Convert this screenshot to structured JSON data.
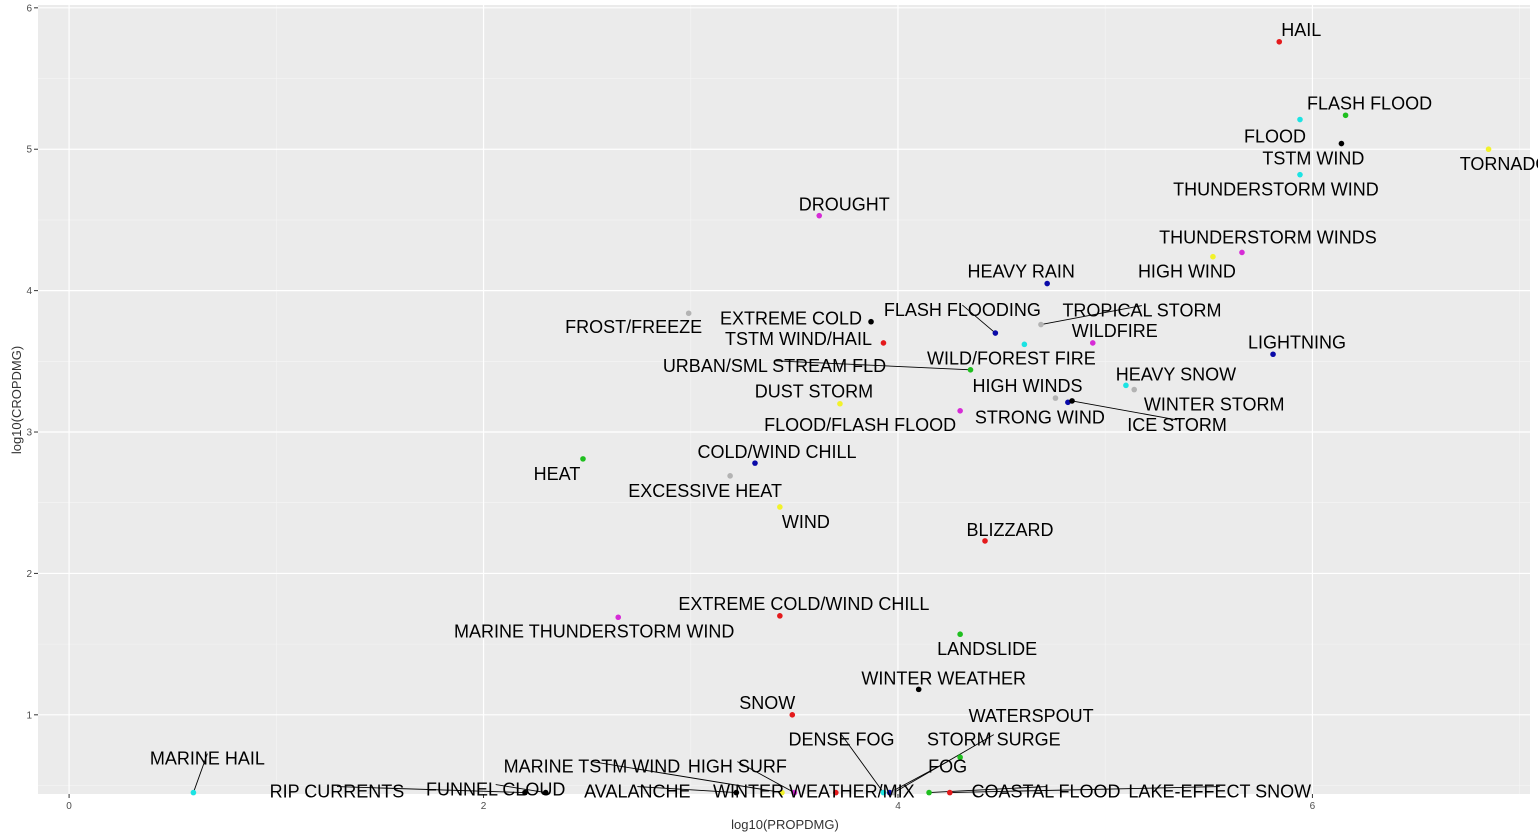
{
  "chart_data": {
    "type": "scatter",
    "xlabel": "log10(PROPDMG)",
    "ylabel": "log10(CROPDMG)",
    "xlim": [
      -0.15,
      7.05
    ],
    "ylim": [
      0.44,
      6.02
    ],
    "x_ticks": [
      0,
      2,
      4,
      6
    ],
    "y_ticks": [
      1,
      2,
      3,
      4,
      5,
      6
    ],
    "grid": true,
    "legend": "none",
    "points": [
      {
        "label": "HAIL",
        "x": 5.84,
        "y": 5.76,
        "color": "#e41a1c"
      },
      {
        "label": "FLASH FLOOD",
        "x": 6.16,
        "y": 5.24,
        "color": "#1fbf1f"
      },
      {
        "label": "FLOOD",
        "x": 5.94,
        "y": 5.21,
        "color": "#1be3e3"
      },
      {
        "label": "TSTM WIND",
        "x": 6.14,
        "y": 5.04,
        "color": "#000000"
      },
      {
        "label": "TORNADO",
        "x": 6.85,
        "y": 5.0,
        "color": "#f2f22a"
      },
      {
        "label": "THUNDERSTORM WIND",
        "x": 5.94,
        "y": 4.82,
        "color": "#1be3e3"
      },
      {
        "label": "DROUGHT",
        "x": 3.62,
        "y": 4.53,
        "color": "#d62bd6"
      },
      {
        "label": "THUNDERSTORM WINDS",
        "x": 5.66,
        "y": 4.27,
        "color": "#d62bd6"
      },
      {
        "label": "HIGH WIND",
        "x": 5.52,
        "y": 4.24,
        "color": "#f2f22a"
      },
      {
        "label": "HEAVY RAIN",
        "x": 4.72,
        "y": 4.05,
        "color": "#0a0aa8"
      },
      {
        "label": "FROST/FREEZE",
        "x": 2.99,
        "y": 3.84,
        "color": "#b3b3b3"
      },
      {
        "label": "EXTREME COLD",
        "x": 3.87,
        "y": 3.78,
        "color": "#000000"
      },
      {
        "label": "TROPICAL STORM",
        "x": 4.69,
        "y": 3.76,
        "color": "#b3b3b3"
      },
      {
        "label": "FLASH FLOODING",
        "x": 4.47,
        "y": 3.7,
        "color": "#0a0aa8"
      },
      {
        "label": "TSTM WIND/HAIL",
        "x": 3.93,
        "y": 3.63,
        "color": "#e41a1c"
      },
      {
        "label": "WILDFIRE",
        "x": 4.94,
        "y": 3.63,
        "color": "#d62bd6"
      },
      {
        "label": "LIGHTNING",
        "x": 5.81,
        "y": 3.55,
        "color": "#0a0aa8"
      },
      {
        "label": "WILD/FOREST FIRE",
        "x": 4.61,
        "y": 3.62,
        "color": "#1be3e3"
      },
      {
        "label": "URBAN/SML STREAM FLD",
        "x": 4.35,
        "y": 3.44,
        "color": "#1fbf1f"
      },
      {
        "label": "HEAVY SNOW",
        "x": 5.1,
        "y": 3.33,
        "color": "#1be3e3"
      },
      {
        "label": "WINTER STORM",
        "x": 5.14,
        "y": 3.3,
        "color": "#b3b3b3"
      },
      {
        "label": "HIGH WINDS",
        "x": 4.76,
        "y": 3.24,
        "color": "#b3b3b3"
      },
      {
        "label": "DUST STORM",
        "x": 3.72,
        "y": 3.2,
        "color": "#f2f22a"
      },
      {
        "label": "STRONG WIND",
        "x": 4.82,
        "y": 3.21,
        "color": "#0a0aa8"
      },
      {
        "label": "ICE STORM",
        "x": 4.84,
        "y": 3.22,
        "color": "#000000"
      },
      {
        "label": "FLOOD/FLASH FLOOD",
        "x": 4.3,
        "y": 3.15,
        "color": "#d62bd6"
      },
      {
        "label": "HEAT",
        "x": 2.48,
        "y": 2.81,
        "color": "#1fbf1f"
      },
      {
        "label": "COLD/WIND CHILL",
        "x": 3.31,
        "y": 2.78,
        "color": "#0a0aa8"
      },
      {
        "label": "EXCESSIVE HEAT",
        "x": 3.19,
        "y": 2.69,
        "color": "#b3b3b3"
      },
      {
        "label": "WIND",
        "x": 3.43,
        "y": 2.47,
        "color": "#f2f22a"
      },
      {
        "label": "BLIZZARD",
        "x": 4.42,
        "y": 2.23,
        "color": "#e41a1c"
      },
      {
        "label": "MARINE THUNDERSTORM WIND",
        "x": 2.65,
        "y": 1.69,
        "color": "#d62bd6"
      },
      {
        "label": "EXTREME COLD/WIND CHILL",
        "x": 3.43,
        "y": 1.7,
        "color": "#e41a1c"
      },
      {
        "label": "LANDSLIDE",
        "x": 4.3,
        "y": 1.57,
        "color": "#1fbf1f"
      },
      {
        "label": "WINTER WEATHER",
        "x": 4.1,
        "y": 1.18,
        "color": "#000000"
      },
      {
        "label": "SNOW",
        "x": 3.49,
        "y": 1.0,
        "color": "#e41a1c"
      },
      {
        "label": "WATERSPOUT",
        "x": 4.3,
        "y": 0.7,
        "color": "#1fbf1f"
      },
      {
        "label": "MARINE HAIL",
        "x": 0.6,
        "y": 0.45,
        "color": "#1be3e3"
      },
      {
        "label": "RIP CURRENTS",
        "x": 2.2,
        "y": 0.45,
        "color": "#000000"
      },
      {
        "label": "FUNNEL CLOUD",
        "x": 2.3,
        "y": 0.45,
        "color": "#000000"
      },
      {
        "label": "AVALANCHE",
        "x": 3.22,
        "y": 0.45,
        "color": "#000000"
      },
      {
        "label": "MARINE TSTM WIND",
        "x": 3.44,
        "y": 0.45,
        "color": "#f2f22a"
      },
      {
        "label": "HIGH SURF",
        "x": 3.5,
        "y": 0.45,
        "color": "#d62bd6"
      },
      {
        "label": "WINTER WEATHER/MIX",
        "x": 3.7,
        "y": 0.45,
        "color": "#e41a1c"
      },
      {
        "label": "DENSE FOG",
        "x": 3.93,
        "y": 0.45,
        "color": "#1be3e3"
      },
      {
        "label": "FOG",
        "x": 3.96,
        "y": 0.45,
        "color": "#0a0aa8"
      },
      {
        "label": "STORM SURGE",
        "x": 3.98,
        "y": 0.45,
        "color": "#b3b3b3"
      },
      {
        "label": "COASTAL FLOOD",
        "x": 4.15,
        "y": 0.45,
        "color": "#1fbf1f"
      },
      {
        "label": "LAKE-EFFECT SNOW",
        "x": 4.25,
        "y": 0.45,
        "color": "#e41a1c"
      }
    ]
  }
}
